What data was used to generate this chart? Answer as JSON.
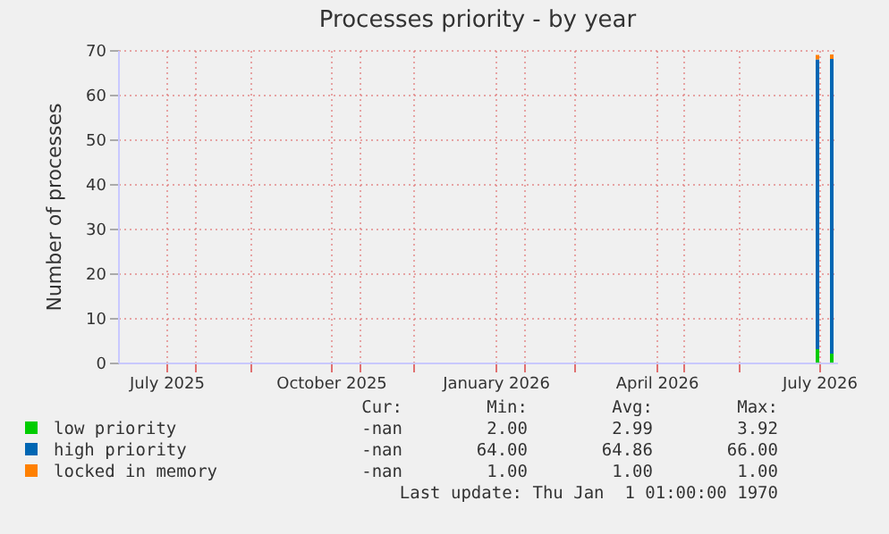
{
  "chart_data": {
    "type": "bar",
    "stacked": true,
    "title": "Processes priority - by year",
    "ylabel": "Number of processes",
    "x": [
      "2026-07-15",
      "2026-07-23"
    ],
    "series": [
      {
        "name": "low priority",
        "color": "#00cc00",
        "values": [
          3,
          2
        ]
      },
      {
        "name": "high priority",
        "color": "#0066b3",
        "values": [
          64.9,
          66
        ]
      },
      {
        "name": "locked in memory",
        "color": "#ff8000",
        "values": [
          1,
          1
        ]
      }
    ],
    "xlim": [
      "2025-06-19",
      "2026-07-26"
    ],
    "xticks": [
      {
        "value": "2025-07-16",
        "label": "July 2025"
      },
      {
        "value": "2025-08-01",
        "label": null
      },
      {
        "value": "2025-09-01",
        "label": null
      },
      {
        "value": "2025-10-16",
        "label": "October 2025"
      },
      {
        "value": "2025-11-01",
        "label": null
      },
      {
        "value": "2025-12-01",
        "label": null
      },
      {
        "value": "2026-01-16",
        "label": "January 2026"
      },
      {
        "value": "2026-02-01",
        "label": null
      },
      {
        "value": "2026-03-01",
        "label": null
      },
      {
        "value": "2026-04-16",
        "label": "April 2026"
      },
      {
        "value": "2026-05-01",
        "label": null
      },
      {
        "value": "2026-06-01",
        "label": null
      },
      {
        "value": "2026-07-16",
        "label": "July 2026"
      }
    ],
    "ylim": [
      0,
      70
    ],
    "yticks": [
      0,
      10,
      20,
      30,
      40,
      50,
      60,
      70
    ],
    "grid": true,
    "legend": "bottom",
    "annotations": [
      "Cur:",
      "Min:",
      "Avg:",
      "Max:",
      "-nan",
      "2.00",
      "2.99",
      "3.92",
      "-nan",
      "64.00",
      "64.86",
      "66.00",
      "-nan",
      "1.00",
      "1.00",
      "1.00",
      "Last update: Thu Jan  1 01:00:00 1970"
    ]
  }
}
